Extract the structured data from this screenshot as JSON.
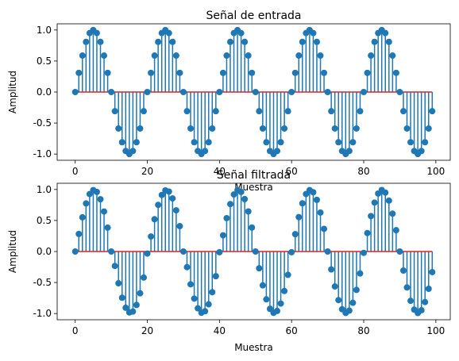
{
  "colors": {
    "stem": "#1f77b4",
    "baseline": "#d62728"
  },
  "chart_data": [
    {
      "type": "stem",
      "title": "Señal de entrada",
      "xlabel": "Muestra",
      "ylabel": "Amplitud",
      "xlim": [
        -5,
        104
      ],
      "ylim": [
        -1.1,
        1.1
      ],
      "xticks": [
        0,
        20,
        40,
        60,
        80,
        100
      ],
      "yticks": [
        -1.0,
        -0.5,
        0.0,
        0.5,
        1.0
      ],
      "baseline": 0.0,
      "x": [
        0,
        1,
        2,
        3,
        4,
        5,
        6,
        7,
        8,
        9,
        10,
        11,
        12,
        13,
        14,
        15,
        16,
        17,
        18,
        19,
        20,
        21,
        22,
        23,
        24,
        25,
        26,
        27,
        28,
        29,
        30,
        31,
        32,
        33,
        34,
        35,
        36,
        37,
        38,
        39,
        40,
        41,
        42,
        43,
        44,
        45,
        46,
        47,
        48,
        49,
        50,
        51,
        52,
        53,
        54,
        55,
        56,
        57,
        58,
        59,
        60,
        61,
        62,
        63,
        64,
        65,
        66,
        67,
        68,
        69,
        70,
        71,
        72,
        73,
        74,
        75,
        76,
        77,
        78,
        79,
        80,
        81,
        82,
        83,
        84,
        85,
        86,
        87,
        88,
        89,
        90,
        91,
        92,
        93,
        94,
        95,
        96,
        97,
        98,
        99
      ],
      "values": [
        0.0,
        0.309,
        0.588,
        0.809,
        0.951,
        1.0,
        0.951,
        0.809,
        0.588,
        0.309,
        0.0,
        -0.309,
        -0.588,
        -0.809,
        -0.951,
        -1.0,
        -0.951,
        -0.809,
        -0.588,
        -0.309,
        0.0,
        0.309,
        0.588,
        0.809,
        0.951,
        1.0,
        0.951,
        0.809,
        0.588,
        0.309,
        0.0,
        -0.309,
        -0.588,
        -0.809,
        -0.951,
        -1.0,
        -0.951,
        -0.809,
        -0.588,
        -0.309,
        0.0,
        0.309,
        0.588,
        0.809,
        0.951,
        1.0,
        0.951,
        0.809,
        0.588,
        0.309,
        0.0,
        -0.309,
        -0.588,
        -0.809,
        -0.951,
        -1.0,
        -0.951,
        -0.809,
        -0.588,
        -0.309,
        0.0,
        0.309,
        0.588,
        0.809,
        0.951,
        1.0,
        0.951,
        0.809,
        0.588,
        0.309,
        0.0,
        -0.309,
        -0.588,
        -0.809,
        -0.951,
        -1.0,
        -0.951,
        -0.809,
        -0.588,
        -0.309,
        0.0,
        0.309,
        0.588,
        0.809,
        0.951,
        1.0,
        0.951,
        0.809,
        0.588,
        0.309,
        0.0,
        -0.309,
        -0.588,
        -0.809,
        -0.951,
        -1.0,
        -0.951,
        -0.809,
        -0.588,
        -0.309
      ]
    },
    {
      "type": "stem",
      "title": "Señal filtrada",
      "xlabel": "Muestra",
      "ylabel": "Amplitud",
      "xlim": [
        -5,
        104
      ],
      "ylim": [
        -1.1,
        1.1
      ],
      "xticks": [
        0,
        20,
        40,
        60,
        80,
        100
      ],
      "yticks": [
        -1.0,
        -0.5,
        0.0,
        0.5,
        1.0
      ],
      "baseline": 0.0,
      "x": [
        0,
        1,
        2,
        3,
        4,
        5,
        6,
        7,
        8,
        9,
        10,
        11,
        12,
        13,
        14,
        15,
        16,
        17,
        18,
        19,
        20,
        21,
        22,
        23,
        24,
        25,
        26,
        27,
        28,
        29,
        30,
        31,
        32,
        33,
        34,
        35,
        36,
        37,
        38,
        39,
        40,
        41,
        42,
        43,
        44,
        45,
        46,
        47,
        48,
        49,
        50,
        51,
        52,
        53,
        54,
        55,
        56,
        57,
        58,
        59,
        60,
        61,
        62,
        63,
        64,
        65,
        66,
        67,
        68,
        69,
        70,
        71,
        72,
        73,
        74,
        75,
        76,
        77,
        78,
        79,
        80,
        81,
        82,
        83,
        84,
        85,
        86,
        87,
        88,
        89,
        90,
        91,
        92,
        93,
        94,
        95,
        96,
        97,
        98,
        99
      ],
      "values": [
        0.0,
        0.283,
        0.551,
        0.775,
        0.926,
        0.99,
        0.961,
        0.843,
        0.645,
        0.385,
        0.0,
        -0.233,
        -0.512,
        -0.745,
        -0.907,
        -0.983,
        -0.968,
        -0.862,
        -0.673,
        -0.42,
        -0.033,
        0.242,
        0.521,
        0.752,
        0.912,
        0.985,
        0.966,
        0.856,
        0.664,
        0.409,
        0.0,
        -0.252,
        -0.529,
        -0.759,
        -0.916,
        -0.987,
        -0.963,
        -0.851,
        -0.655,
        -0.398,
        -0.011,
        0.261,
        0.538,
        0.765,
        0.92,
        0.988,
        0.961,
        0.845,
        0.646,
        0.387,
        0.0,
        -0.27,
        -0.546,
        -0.771,
        -0.924,
        -0.989,
        -0.958,
        -0.839,
        -0.637,
        -0.376,
        -0.011,
        0.28,
        0.555,
        0.777,
        0.927,
        0.99,
        0.956,
        0.833,
        0.628,
        0.365,
        0.0,
        -0.289,
        -0.563,
        -0.783,
        -0.931,
        -0.991,
        -0.953,
        -0.827,
        -0.619,
        -0.354,
        -0.022,
        0.298,
        0.571,
        0.789,
        0.934,
        0.992,
        0.95,
        0.821,
        0.61,
        0.343,
        0.0,
        -0.307,
        -0.579,
        -0.795,
        -0.937,
        -0.992,
        -0.947,
        -0.815,
        -0.601,
        -0.332
      ]
    }
  ]
}
